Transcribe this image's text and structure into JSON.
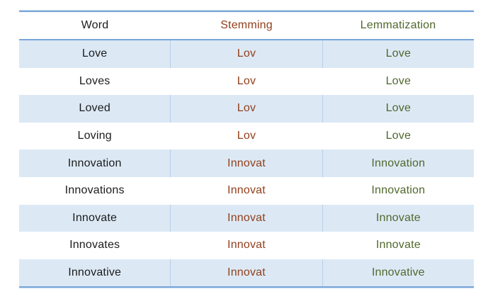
{
  "chart_data": {
    "type": "table",
    "columns": [
      {
        "key": "word",
        "label": "Word"
      },
      {
        "key": "stemming",
        "label": "Stemming"
      },
      {
        "key": "lemmatization",
        "label": "Lemmatization"
      }
    ],
    "rows": [
      {
        "word": "Love",
        "stemming": "Lov",
        "lemmatization": "Love"
      },
      {
        "word": "Loves",
        "stemming": "Lov",
        "lemmatization": "Love"
      },
      {
        "word": "Loved",
        "stemming": "Lov",
        "lemmatization": "Love"
      },
      {
        "word": "Loving",
        "stemming": "Lov",
        "lemmatization": "Love"
      },
      {
        "word": "Innovation",
        "stemming": "Innovat",
        "lemmatization": "Innovation"
      },
      {
        "word": "Innovations",
        "stemming": "Innovat",
        "lemmatization": "Innovation"
      },
      {
        "word": "Innovate",
        "stemming": "Innovat",
        "lemmatization": "Innovate"
      },
      {
        "word": "Innovates",
        "stemming": "Innovat",
        "lemmatization": "Innovate"
      },
      {
        "word": "Innovative",
        "stemming": "Innovat",
        "lemmatization": "Innovative"
      }
    ],
    "layout": {
      "shaded_row_indices": [
        0,
        2,
        4,
        6,
        8
      ],
      "column_alignment": "center"
    }
  },
  "style": {
    "background": "#ffffff",
    "border_blue": "#79a6d9",
    "shaded_row_bg": "#dce9f5",
    "column_divider": "#b7cfe9",
    "word_text_color": "#1c1c1c",
    "stemming_text_color": "#92401d",
    "lemmatization_text_color": "#50682c"
  }
}
